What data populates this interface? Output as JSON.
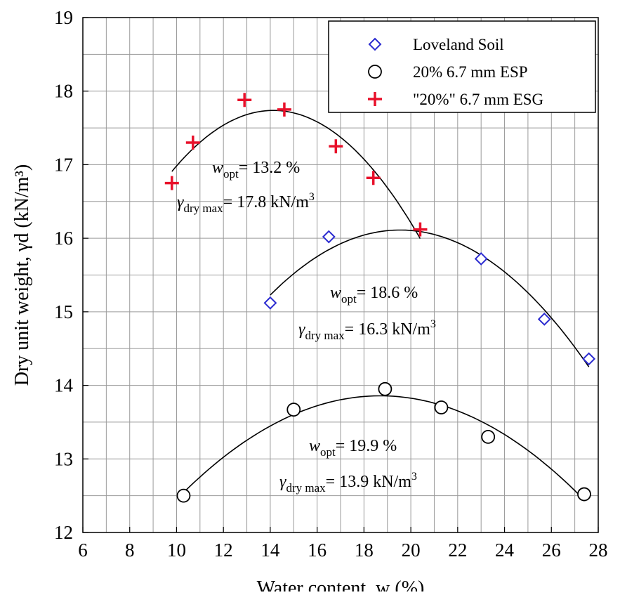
{
  "chart_data": {
    "type": "scatter",
    "xlabel": "Water content, w (%)",
    "ylabel": "Dry unit weight, γd (kN/m³)",
    "xlim": [
      6,
      28
    ],
    "ylim": [
      12,
      19
    ],
    "xticks": [
      6,
      8,
      10,
      12,
      14,
      16,
      18,
      20,
      22,
      24,
      26,
      28
    ],
    "yticks": [
      12,
      13,
      14,
      15,
      16,
      17,
      18,
      19
    ],
    "grid": true,
    "legend_position": "top-right",
    "series": [
      {
        "name": "Loveland Soil",
        "marker": "diamond",
        "color": "#2b2bd0",
        "points": [
          [
            14.0,
            15.12
          ],
          [
            16.5,
            16.02
          ],
          [
            23.0,
            15.72
          ],
          [
            25.7,
            14.9
          ],
          [
            27.6,
            14.36
          ]
        ],
        "fit": {
          "x_start": 14.0,
          "x_end": 27.6
        }
      },
      {
        "name": "20% 6.7 mm ESP",
        "marker": "circle",
        "color": "#000000",
        "points": [
          [
            10.3,
            12.5
          ],
          [
            15.0,
            13.67
          ],
          [
            18.9,
            13.95
          ],
          [
            21.3,
            13.7
          ],
          [
            23.3,
            13.3
          ],
          [
            27.4,
            12.52
          ]
        ],
        "fit": {
          "x_start": 10.3,
          "x_end": 27.4
        }
      },
      {
        "name": "\"20%\" 6.7 mm ESG",
        "marker": "plus",
        "color": "#e8102a",
        "points": [
          [
            9.8,
            16.75
          ],
          [
            10.7,
            17.3
          ],
          [
            12.9,
            17.88
          ],
          [
            14.6,
            17.75
          ],
          [
            16.8,
            17.25
          ],
          [
            18.4,
            16.82
          ],
          [
            20.4,
            16.12
          ]
        ],
        "fit": {
          "x_start": 9.8,
          "x_end": 20.4
        }
      }
    ],
    "annotations": [
      {
        "w_label": "w",
        "w_sub": "opt",
        "w_text": "= 13.2 %",
        "g_label": "γ",
        "g_sub": "dry max",
        "g_text": "= 17.8 kN/m",
        "g_sup": "3"
      },
      {
        "w_label": "w",
        "w_sub": "opt",
        "w_text": "= 18.6 %",
        "g_label": "γ",
        "g_sub": "dry max",
        "g_text": "= 16.3 kN/m",
        "g_sup": "3"
      },
      {
        "w_label": "w",
        "w_sub": "opt",
        "w_text": "= 19.9 %",
        "g_label": "γ",
        "g_sub": "dry max",
        "g_text": "= 13.9 kN/m",
        "g_sup": "3"
      }
    ]
  }
}
